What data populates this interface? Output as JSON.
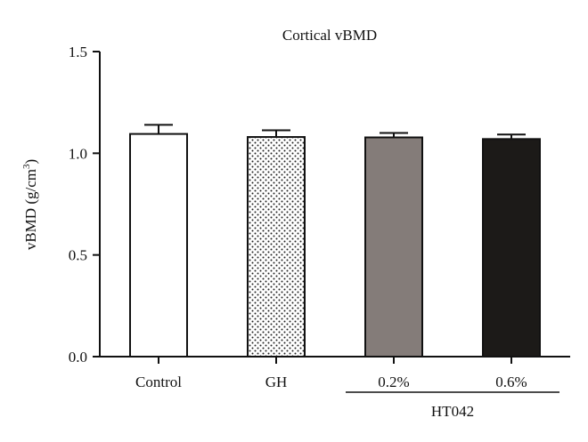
{
  "chart_data": {
    "type": "bar",
    "title": "Cortical vBMD",
    "ylabel": "vBMD (g/cm",
    "ylabel_sup": "3",
    "ylabel_close": ")",
    "xlabel": "",
    "ylim": [
      0,
      1.5
    ],
    "yticks": [
      0.0,
      0.5,
      1.0,
      1.5
    ],
    "ytick_labels": [
      "0.0",
      "0.5",
      "1.0",
      "1.5"
    ],
    "categories": [
      "Control",
      "GH",
      "0.2%",
      "0.6%"
    ],
    "values": [
      1.095,
      1.08,
      1.078,
      1.07
    ],
    "errors": [
      0.045,
      0.033,
      0.022,
      0.022
    ],
    "fills": [
      "white",
      "dotted",
      "#847c79",
      "#1c1a18"
    ],
    "group_label": "HT042",
    "group_categories": [
      "0.2%",
      "0.6%"
    ],
    "grid": false,
    "legend": "none"
  }
}
